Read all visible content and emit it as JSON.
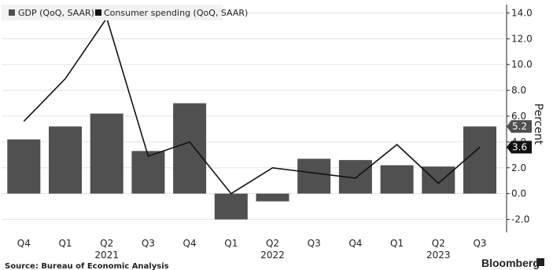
{
  "chart_data": {
    "type": "bar",
    "categories": [
      "Q4",
      "Q1",
      "Q2",
      "Q3",
      "Q4",
      "Q1",
      "Q2",
      "Q3",
      "Q4",
      "Q1",
      "Q2",
      "Q3"
    ],
    "year_labels": [
      {
        "label": "2021",
        "index": 2
      },
      {
        "label": "2022",
        "index": 6
      },
      {
        "label": "2023",
        "index": 10
      }
    ],
    "series": [
      {
        "name": "GDP (QoQ, SAAR)",
        "kind": "bar",
        "color": "#505050",
        "values": [
          4.2,
          5.2,
          6.2,
          3.3,
          7.0,
          -2.0,
          -0.6,
          2.7,
          2.6,
          2.2,
          2.1,
          5.2
        ]
      },
      {
        "name": "Consumer spending (QoQ, SAAR)",
        "kind": "line",
        "color": "#111111",
        "values": [
          5.6,
          8.9,
          13.6,
          2.9,
          4.0,
          0.0,
          2.0,
          1.6,
          1.2,
          3.8,
          0.8,
          3.6
        ]
      }
    ],
    "ylabel": "Percent",
    "ylim": [
      -3.0,
      15.0
    ],
    "yticks": [
      14.0,
      12.0,
      10.0,
      8.0,
      6.0,
      4.0,
      2.0,
      0.0,
      -2.0
    ],
    "ytick_labels": [
      "14.0",
      "12.0",
      "10.0",
      "8.0",
      "6.0",
      "4.0",
      "2.0",
      "0.0",
      "-2.0"
    ],
    "end_labels": [
      {
        "text": "5.2",
        "value": 5.2,
        "bg": "#505050",
        "fg": "#ffffff"
      },
      {
        "text": "3.6",
        "value": 3.6,
        "bg": "#111111",
        "fg": "#ffffff"
      }
    ],
    "grid": true,
    "legend_position": "top-left"
  },
  "footer": {
    "source": "Source: Bureau of Economic Analysis",
    "brand": "Bloomberg"
  }
}
